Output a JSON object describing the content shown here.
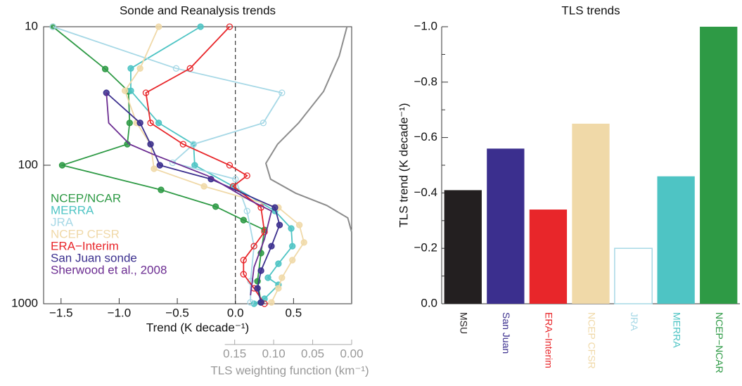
{
  "chart_data": [
    {
      "type": "profile",
      "title": "Sonde and Reanalysis trends",
      "xlabel": "Trend (K decade⁻¹)",
      "x2label": "TLS weighting function (km⁻¹)",
      "xlim": [
        -1.65,
        1.0
      ],
      "ylim": [
        1000,
        10
      ],
      "y_scale": "log",
      "x2lim": [
        0.395,
        0
      ],
      "xticks": [
        {
          "value": -1.5,
          "label": "−1.5"
        },
        {
          "value": -1.0,
          "label": "−1.0"
        },
        {
          "value": -0.5,
          "label": "−0.5"
        },
        {
          "value": 0.0,
          "label": "0.0"
        },
        {
          "value": 0.5,
          "label": "0.5"
        }
      ],
      "yticks": [
        10,
        100,
        1000
      ],
      "x2ticks": [
        {
          "value": 0.15,
          "label": "0.15"
        },
        {
          "value": 0.1,
          "label": "0.10"
        },
        {
          "value": 0.05,
          "label": "0.05"
        },
        {
          "value": 0.0,
          "label": "0.00"
        }
      ],
      "vline": 0,
      "legend": "lower left",
      "series": [
        {
          "name": "NCEP/NCAR",
          "color": "#2e9a45",
          "marker": "filled",
          "x": [
            -1.57,
            -1.12,
            -0.92,
            -0.91,
            -0.93,
            -1.49,
            -0.64,
            -0.17,
            0.07,
            0.25,
            0.22,
            0.19,
            0.22
          ],
          "y": [
            10,
            20.2,
            29.3,
            49.5,
            70.5,
            100,
            150.6,
            199,
            249,
            293,
            431,
            688,
            978
          ]
        },
        {
          "name": "MERRA",
          "color": "#4ec4c4",
          "marker": "filled",
          "x": [
            -0.3,
            -0.9,
            -0.9,
            -0.66,
            -0.36,
            -0.35,
            -0.02,
            0.34,
            0.48,
            0.49,
            0.37,
            0.28,
            0.37,
            0.25,
            0.16
          ],
          "y": [
            10,
            20,
            29,
            49.5,
            70.5,
            100,
            142,
            214,
            286,
            384,
            514,
            649,
            730,
            921,
            1000
          ]
        },
        {
          "name": "JRA",
          "color": "#a6d8e6",
          "marker": "open",
          "x": [
            -1.57,
            -0.51,
            0.4,
            0.24,
            -0.36,
            -0.54,
            0.0,
            0.1,
            0.16,
            0.13,
            0.13
          ],
          "y": [
            10,
            20,
            30,
            49.5,
            70.5,
            96,
            126,
            214,
            384,
            688,
            978
          ]
        },
        {
          "name": "NCEP CFSR",
          "color": "#f0d9a8",
          "marker": "filled",
          "x": [
            -0.66,
            -0.82,
            -0.95,
            -0.85,
            -0.73,
            -0.7,
            -0.27,
            0.37,
            0.55,
            0.59,
            0.49,
            0.4,
            0.37,
            0.31
          ],
          "y": [
            10,
            20,
            29,
            49.5,
            70.5,
            106,
            142,
            202,
            270,
            361,
            484,
            649,
            773,
            978
          ]
        },
        {
          "name": "ERA−Interim",
          "color": "#e8262a",
          "marker": "open",
          "x": [
            -0.05,
            -0.39,
            -0.77,
            -0.73,
            -0.45,
            -0.05,
            0.1,
            -0.02,
            0.22,
            0.25,
            0.16,
            0.07,
            0.07,
            0.16,
            0.25
          ],
          "y": [
            10,
            20,
            30,
            49.5,
            70.5,
            100,
            119,
            142,
            202,
            303,
            384,
            484,
            612,
            773,
            1000
          ]
        },
        {
          "name": "San Juan sonde",
          "color": "#3b2f8e",
          "marker": "filled",
          "x": [
            -1.11,
            -0.82,
            -0.73,
            -0.65,
            -0.21,
            0.34,
            0.38,
            0.31,
            0.22,
            0.19,
            0.22
          ],
          "y": [
            30,
            49.5,
            70.5,
            100,
            126,
            202,
            270,
            384,
            577,
            773,
            978
          ]
        },
        {
          "name": "Sherwood et al., 2008",
          "color": "#6b2c91",
          "marker": "none",
          "x": [
            -1.11,
            -1.09,
            -0.91,
            -0.7,
            -0.24,
            0.13,
            0.31,
            0.25,
            0.16,
            0.13
          ],
          "y": [
            30,
            49.5,
            70.5,
            84,
            119,
            180,
            214,
            341,
            545,
            869
          ]
        }
      ],
      "weighting_function": {
        "color": "#8c8c8c",
        "x": [
          0.006,
          0.016,
          0.036,
          0.068,
          0.095,
          0.11,
          0.104,
          0.072,
          0.032,
          0.005,
          0.0,
          0.0
        ],
        "y": [
          10,
          16.3,
          29.3,
          49.5,
          70.5,
          96.8,
          126,
          159,
          195,
          240,
          303,
          1000
        ]
      }
    },
    {
      "type": "bar",
      "title": "TLS trends",
      "ylabel": "TLS trend (K decade⁻¹)",
      "categories": [
        "MSU",
        "San Juan",
        "ERA−Interim",
        "NCEP CFSR",
        "JRA",
        "MERRA",
        "NCEP−NCAR"
      ],
      "values": [
        -0.41,
        -0.56,
        -0.34,
        -0.65,
        -0.2,
        -0.46,
        -1.0
      ],
      "colors": [
        "#231f20",
        "#3b2f8e",
        "#e8262a",
        "#f0d9a8",
        "#a6d8e6",
        "#4ec4c4",
        "#2e9a45"
      ],
      "styles": [
        "filled",
        "filled",
        "filled",
        "filled",
        "outline",
        "filled",
        "filled"
      ],
      "ylim": [
        0.0,
        -1.0
      ],
      "yticks": [
        {
          "value": -1.0,
          "label": "−1.0"
        },
        {
          "value": -0.8,
          "label": "−0.8"
        },
        {
          "value": -0.6,
          "label": "−0.6"
        },
        {
          "value": -0.4,
          "label": "−0.4"
        },
        {
          "value": -0.2,
          "label": "−0.2"
        },
        {
          "value": 0.0,
          "label": "0.0"
        }
      ]
    }
  ]
}
